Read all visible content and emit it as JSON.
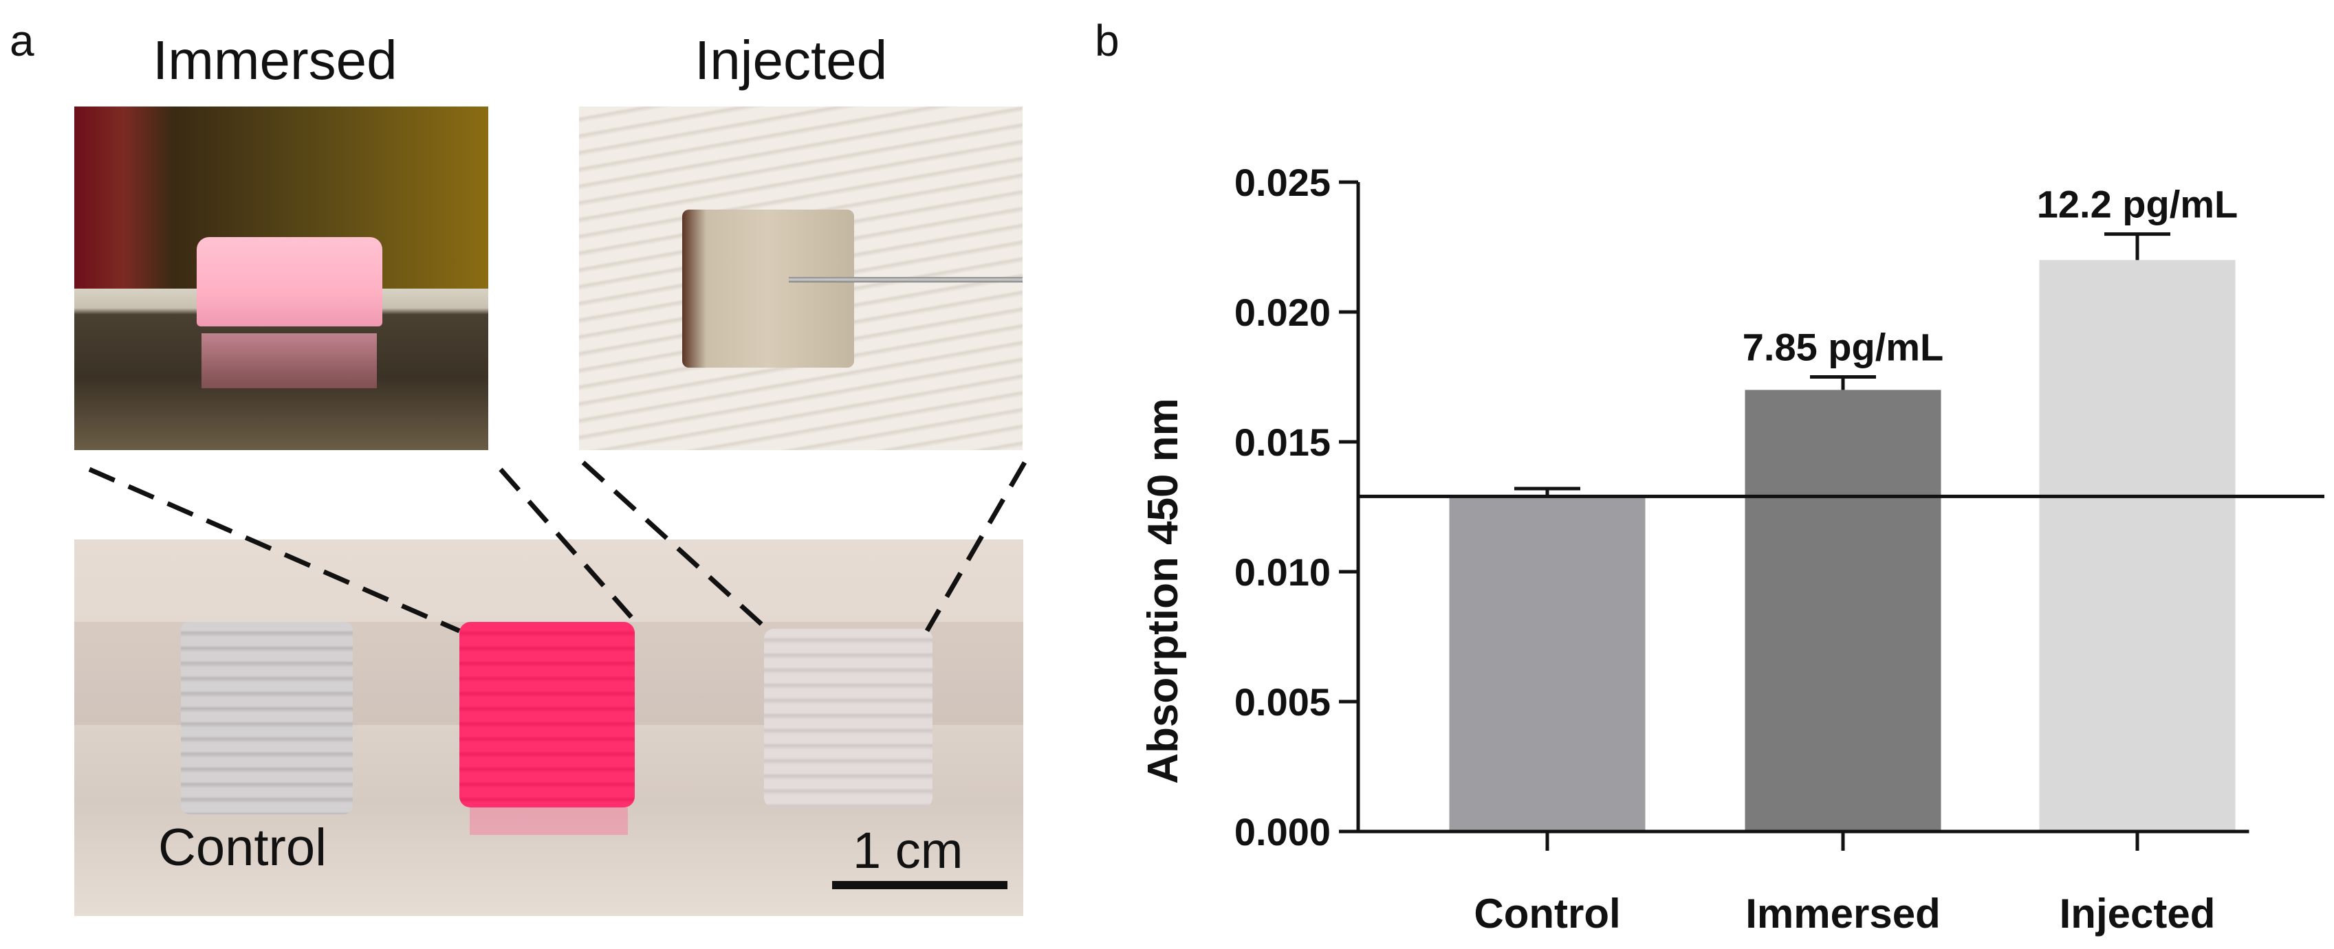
{
  "panel_a": {
    "letter": "a",
    "title_immersed": "Immersed",
    "title_injected": "Injected",
    "label_control": "Control",
    "scale_bar": "1 cm"
  },
  "panel_b": {
    "letter": "b"
  },
  "colors": {
    "control": "#9e9ea2",
    "immersed": "#7b7b7b",
    "injected": "#d9d9d9",
    "axis": "#111111",
    "pink": "#ff2f6e"
  },
  "chart_data": {
    "type": "bar",
    "categories": [
      "Control",
      "Immersed",
      "Injected"
    ],
    "values": [
      0.0129,
      0.017,
      0.022
    ],
    "error_plus": [
      0.0003,
      0.0005,
      0.001
    ],
    "data_labels": [
      "",
      "7.85 pg/mL",
      "12.2 pg/mL"
    ],
    "baseline_value": 0.0129,
    "ylabel": "Absorption 450 nm",
    "xlabel": "",
    "ylim": [
      0,
      0.025
    ],
    "yticks": [
      "0.000",
      "0.005",
      "0.010",
      "0.015",
      "0.020",
      "0.025"
    ],
    "grid": false,
    "legend": "none"
  }
}
